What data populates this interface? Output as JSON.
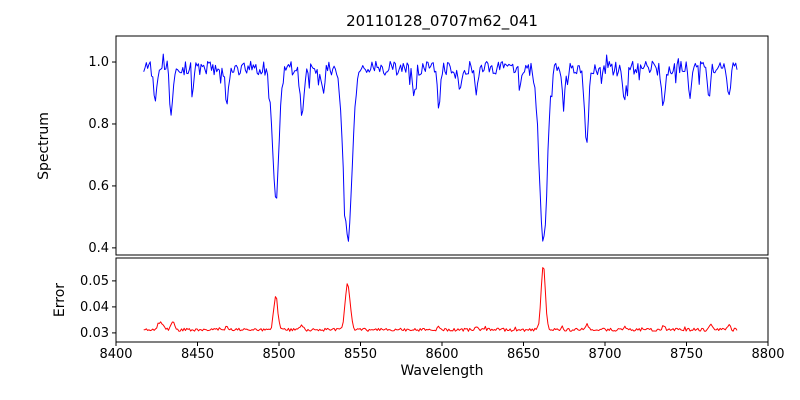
{
  "chart_data": {
    "type": "line",
    "title": "20110128_0707m62_041",
    "xlabel": "Wavelength",
    "grid": false,
    "legend": "none",
    "x_range_full": [
      8400,
      8800
    ],
    "x_data_range": [
      8417,
      8781
    ],
    "x_ticks": [
      8400,
      8450,
      8500,
      8550,
      8600,
      8650,
      8700,
      8750,
      8800
    ],
    "x_tick_labels": [
      "8400",
      "8450",
      "8500",
      "8550",
      "8600",
      "8650",
      "8700",
      "8750",
      "8800"
    ],
    "sampling_step": 0.8,
    "seed": 20110128,
    "panels": [
      {
        "name": "spectrum",
        "ylabel": "Spectrum",
        "color": "#0000ff",
        "ylim": [
          0.377,
          1.084
        ],
        "y_ticks": [
          0.4,
          0.6,
          0.8,
          1.0
        ],
        "y_tick_labels": [
          "0.4",
          "0.6",
          "0.8",
          "1.0"
        ],
        "continuum": 0.98,
        "noise_amplitude": 0.045,
        "down_spike_probability": 0.07,
        "down_spike_amplitude": 0.05,
        "up_spike_probability": 0.03,
        "up_spike_amplitude": 0.04,
        "absorption_lines": [
          {
            "center": 8498.0,
            "depth": 0.42,
            "sigma": 2.0
          },
          {
            "center": 8542.1,
            "depth": 0.555,
            "sigma": 2.7
          },
          {
            "center": 8662.1,
            "depth": 0.575,
            "sigma": 2.4
          },
          {
            "center": 8424.0,
            "depth": 0.12,
            "sigma": 0.9
          },
          {
            "center": 8434.0,
            "depth": 0.14,
            "sigma": 1.0
          },
          {
            "center": 8447.0,
            "depth": 0.08,
            "sigma": 0.8
          },
          {
            "center": 8468.0,
            "depth": 0.11,
            "sigma": 1.0
          },
          {
            "center": 8514.0,
            "depth": 0.15,
            "sigma": 1.1
          },
          {
            "center": 8527.0,
            "depth": 0.08,
            "sigma": 0.8
          },
          {
            "center": 8583.0,
            "depth": 0.09,
            "sigma": 0.9
          },
          {
            "center": 8598.0,
            "depth": 0.11,
            "sigma": 1.0
          },
          {
            "center": 8611.0,
            "depth": 0.08,
            "sigma": 0.8
          },
          {
            "center": 8621.0,
            "depth": 0.1,
            "sigma": 0.9
          },
          {
            "center": 8648.0,
            "depth": 0.07,
            "sigma": 0.8
          },
          {
            "center": 8674.5,
            "depth": 0.09,
            "sigma": 0.8
          },
          {
            "center": 8688.6,
            "depth": 0.22,
            "sigma": 1.3
          },
          {
            "center": 8712.0,
            "depth": 0.11,
            "sigma": 1.0
          },
          {
            "center": 8736.0,
            "depth": 0.13,
            "sigma": 1.1
          },
          {
            "center": 8752.0,
            "depth": 0.08,
            "sigma": 0.8
          },
          {
            "center": 8764.0,
            "depth": 0.09,
            "sigma": 0.8
          },
          {
            "center": 8776.0,
            "depth": 0.1,
            "sigma": 0.9
          }
        ]
      },
      {
        "name": "error",
        "ylabel": "Error",
        "color": "#ff0000",
        "ylim": [
          0.0265,
          0.0588
        ],
        "y_ticks": [
          0.03,
          0.04,
          0.05
        ],
        "y_tick_labels": [
          "0.03",
          "0.04",
          "0.05"
        ],
        "baseline": 0.0312,
        "noise_amplitude": 0.0012,
        "bump_probability": 0.05,
        "bump_amplitude": 0.0012,
        "peaks": [
          {
            "center": 8498.0,
            "height": 0.013,
            "sigma": 1.2
          },
          {
            "center": 8542.1,
            "height": 0.018,
            "sigma": 1.5
          },
          {
            "center": 8662.1,
            "height": 0.025,
            "sigma": 1.3
          },
          {
            "center": 8427.0,
            "height": 0.0028,
            "sigma": 1.6
          },
          {
            "center": 8435.0,
            "height": 0.003,
            "sigma": 1.0
          },
          {
            "center": 8468.0,
            "height": 0.0012,
            "sigma": 1.0
          },
          {
            "center": 8514.0,
            "height": 0.0016,
            "sigma": 1.0
          },
          {
            "center": 8598.0,
            "height": 0.001,
            "sigma": 0.9
          },
          {
            "center": 8621.0,
            "height": 0.0009,
            "sigma": 0.9
          },
          {
            "center": 8688.6,
            "height": 0.002,
            "sigma": 1.1
          },
          {
            "center": 8712.0,
            "height": 0.001,
            "sigma": 0.9
          },
          {
            "center": 8736.0,
            "height": 0.0015,
            "sigma": 1.0
          },
          {
            "center": 8765.0,
            "height": 0.0018,
            "sigma": 0.9
          },
          {
            "center": 8776.0,
            "height": 0.0016,
            "sigma": 0.9
          }
        ]
      }
    ],
    "axis_color": "#000000"
  }
}
